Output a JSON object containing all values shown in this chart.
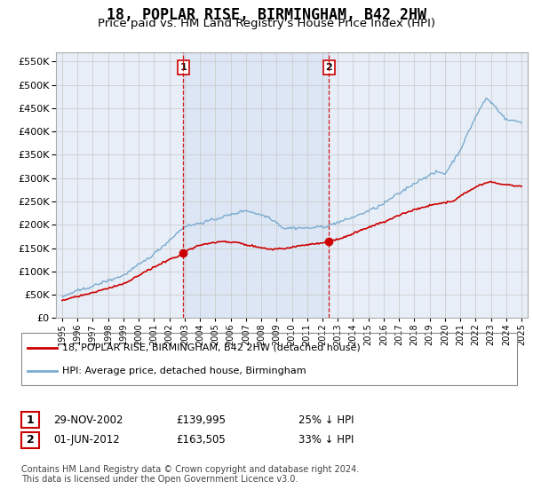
{
  "title": "18, POPLAR RISE, BIRMINGHAM, B42 2HW",
  "subtitle": "Price paid vs. HM Land Registry's House Price Index (HPI)",
  "ylim": [
    0,
    570000
  ],
  "yticks": [
    0,
    50000,
    100000,
    150000,
    200000,
    250000,
    300000,
    350000,
    400000,
    450000,
    500000,
    550000
  ],
  "legend_entries": [
    "18, POPLAR RISE, BIRMINGHAM, B42 2HW (detached house)",
    "HPI: Average price, detached house, Birmingham"
  ],
  "red_line_color": "#cc0000",
  "blue_line_color": "#7aabcf",
  "highlight_color": "#dce6f5",
  "transaction1": {
    "label": "1",
    "date": "29-NOV-2002",
    "price": "£139,995",
    "pct": "25% ↓ HPI",
    "year": 2002.92
  },
  "transaction2": {
    "label": "2",
    "date": "01-JUN-2012",
    "price": "£163,505",
    "pct": "33% ↓ HPI",
    "year": 2012.42
  },
  "vline_color": "#cc0000",
  "grid_color": "#cccccc",
  "background_color": "#e8eef7",
  "footer": "Contains HM Land Registry data © Crown copyright and database right 2024.\nThis data is licensed under the Open Government Licence v3.0.",
  "title_fontsize": 12,
  "subtitle_fontsize": 9.5
}
